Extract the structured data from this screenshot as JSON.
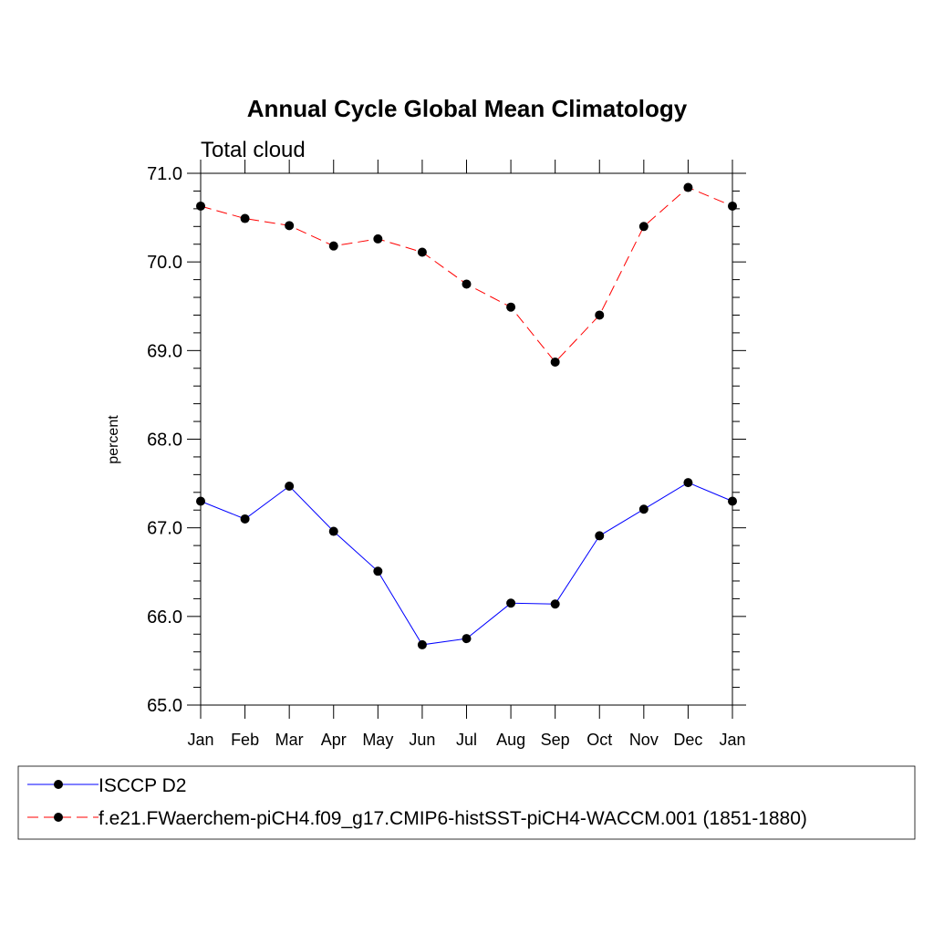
{
  "chart_data": {
    "type": "line",
    "title": "Annual Cycle Global Mean Climatology",
    "subtitle": "Total cloud",
    "xlabel": "",
    "ylabel": "percent",
    "ylim": [
      65.0,
      71.0
    ],
    "ytick_labels": [
      "65.0",
      "66.0",
      "67.0",
      "68.0",
      "69.0",
      "70.0",
      "71.0"
    ],
    "categories": [
      "Jan",
      "Feb",
      "Mar",
      "Apr",
      "May",
      "Jun",
      "Jul",
      "Aug",
      "Sep",
      "Oct",
      "Nov",
      "Dec",
      "Jan"
    ],
    "grid": false,
    "legend_position": "bottom",
    "series": [
      {
        "name": "ISCCP D2",
        "color": "#0000ff",
        "line_style": "solid",
        "marker": "filled-circle",
        "values": [
          67.3,
          67.1,
          67.47,
          66.96,
          66.51,
          65.68,
          65.75,
          66.15,
          66.14,
          66.91,
          67.21,
          67.51,
          67.3
        ]
      },
      {
        "name": "f.e21.FWaerchem-piCH4.f09_g17.CMIP6-histSST-piCH4-WACCM.001 (1851-1880)",
        "color": "#ff0000",
        "line_style": "dashed",
        "marker": "filled-circle",
        "values": [
          70.63,
          70.49,
          70.41,
          70.18,
          70.26,
          70.11,
          69.75,
          69.49,
          68.87,
          69.4,
          70.4,
          70.84,
          70.63
        ]
      }
    ]
  }
}
